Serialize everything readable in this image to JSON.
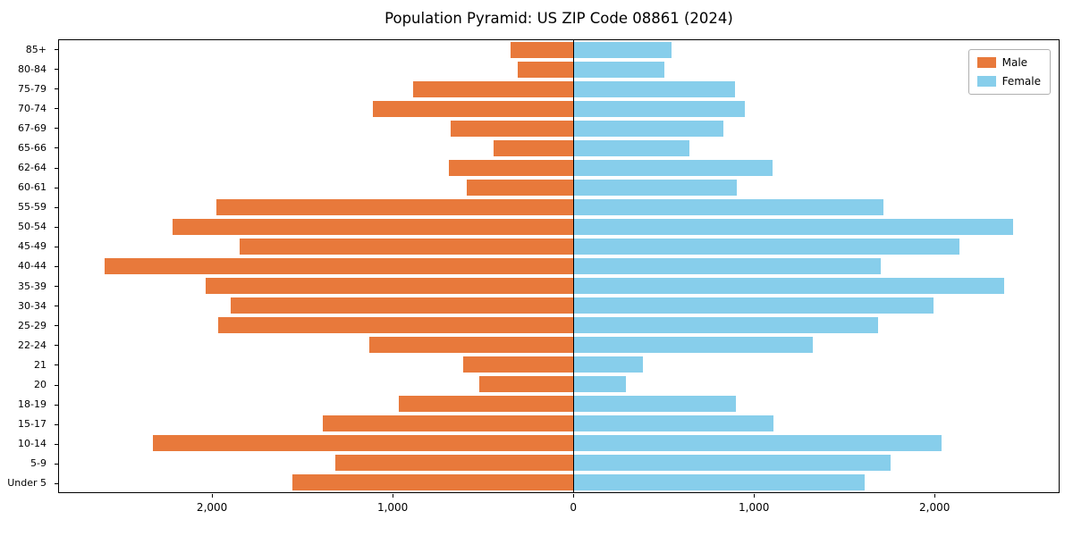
{
  "title": "Population Pyramid: US ZIP Code 08861 (2024)",
  "legend": {
    "male_label": "Male",
    "female_label": "Female"
  },
  "colors": {
    "male": "#E8793B",
    "female": "#87CEEB",
    "axis": "#000000"
  },
  "chart_data": {
    "type": "bar",
    "subtype": "population-pyramid",
    "title": "Population Pyramid: US ZIP Code 08861 (2024)",
    "categories": [
      "85+",
      "80-84",
      "75-79",
      "70-74",
      "67-69",
      "65-66",
      "62-64",
      "60-61",
      "55-59",
      "50-54",
      "45-49",
      "40-44",
      "35-39",
      "30-34",
      "25-29",
      "22-24",
      "21",
      "20",
      "18-19",
      "15-17",
      "10-14",
      "5-9",
      "Under 5"
    ],
    "series": [
      {
        "name": "Male",
        "side": "left",
        "color": "#E8793B",
        "values": [
          350,
          310,
          890,
          1110,
          680,
          440,
          690,
          590,
          1980,
          2220,
          1850,
          2600,
          2040,
          1900,
          1970,
          1130,
          610,
          520,
          970,
          1390,
          2330,
          1320,
          1560
        ]
      },
      {
        "name": "Female",
        "side": "right",
        "color": "#87CEEB",
        "values": [
          545,
          505,
          895,
          950,
          830,
          645,
          1105,
          905,
          1720,
          2440,
          2140,
          1705,
          2390,
          2000,
          1690,
          1330,
          385,
          290,
          900,
          1110,
          2040,
          1760,
          1615
        ]
      }
    ],
    "x_ticks": [
      -2000,
      -1000,
      0,
      1000,
      2000
    ],
    "x_tick_labels": [
      "2,000",
      "1,000",
      "0",
      "1,000",
      "2,000"
    ],
    "xlim": [
      -2852,
      2692
    ],
    "xlabel": "",
    "ylabel": "",
    "grid": false,
    "legend_position": "upper right"
  }
}
